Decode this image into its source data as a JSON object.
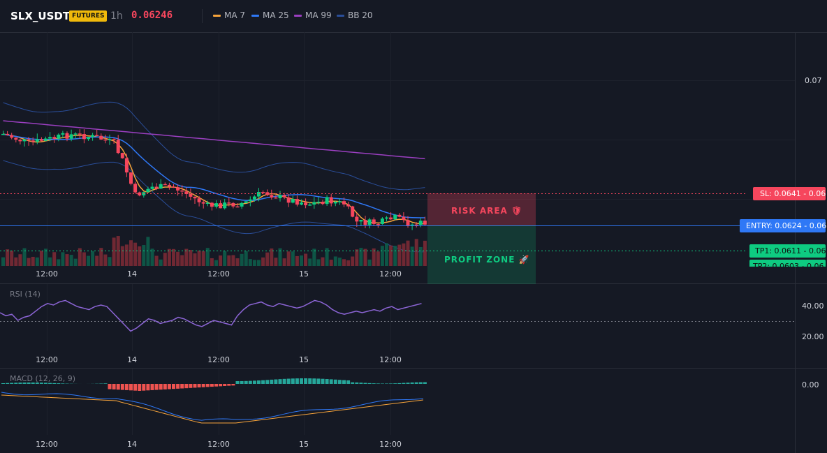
{
  "header": {
    "symbol": "SLX_USDT",
    "badge": "FUTURES",
    "timeframe": "1h",
    "price": "0.06246",
    "indicators": [
      {
        "label": "MA 7",
        "color": "#f7a43b"
      },
      {
        "label": "MA 25",
        "color": "#2f78f6"
      },
      {
        "label": "MA 99",
        "color": "#9b3fc1"
      },
      {
        "label": "BB 20",
        "color": "#2a4e9a"
      }
    ]
  },
  "colors": {
    "up": "#0ecb81",
    "down": "#f6465d",
    "ma7": "#f7a43b",
    "ma25": "#2f78f6",
    "ma99": "#9b3fc1",
    "bb": "#2a4e9a",
    "rsi": "#8c65d6",
    "macd": "#2f78f6",
    "signal": "#f7a43b"
  },
  "price_axis": {
    "labels": [
      "0.07",
      "0.06"
    ]
  },
  "time_axis": {
    "labels": [
      "12:00",
      "14",
      "12:00",
      "15",
      "12:00"
    ]
  },
  "trade_levels": {
    "sl": "SL: 0.0641 - 0.06",
    "entry": "ENTRY: 0.0624 - 0.06",
    "tp1": "TP1: 0.0611 - 0.06",
    "tp2": "TP2: 0.0603 - 0.06"
  },
  "zones": {
    "risk": "RISK AREA 🛡",
    "profit": "PROFIT ZONE 🚀"
  },
  "rsi": {
    "title": "RSI (14)",
    "axis": [
      "40.00",
      "20.00"
    ],
    "values": [
      40,
      38,
      39,
      35,
      37,
      38,
      41,
      44,
      46,
      45,
      47,
      48,
      46,
      44,
      43,
      42,
      44,
      45,
      44,
      40,
      36,
      32,
      28,
      30,
      33,
      36,
      35,
      33,
      34,
      35,
      37,
      36,
      34,
      32,
      31,
      33,
      35,
      34,
      33,
      32,
      38,
      42,
      45,
      46,
      47,
      45,
      44,
      46,
      45,
      44,
      43,
      44,
      46,
      48,
      47,
      45,
      42,
      40,
      39,
      40,
      41,
      40,
      41,
      42,
      41,
      43,
      44,
      42,
      43,
      44,
      45,
      46
    ]
  },
  "macd": {
    "title": "MACD (12, 26, 9)",
    "axis": [
      "0.00"
    ]
  },
  "chart_data": {
    "type": "candlestick",
    "series": [
      {
        "name": "MA 7"
      },
      {
        "name": "MA 25"
      },
      {
        "name": "MA 99"
      },
      {
        "name": "BB 20"
      }
    ]
  }
}
